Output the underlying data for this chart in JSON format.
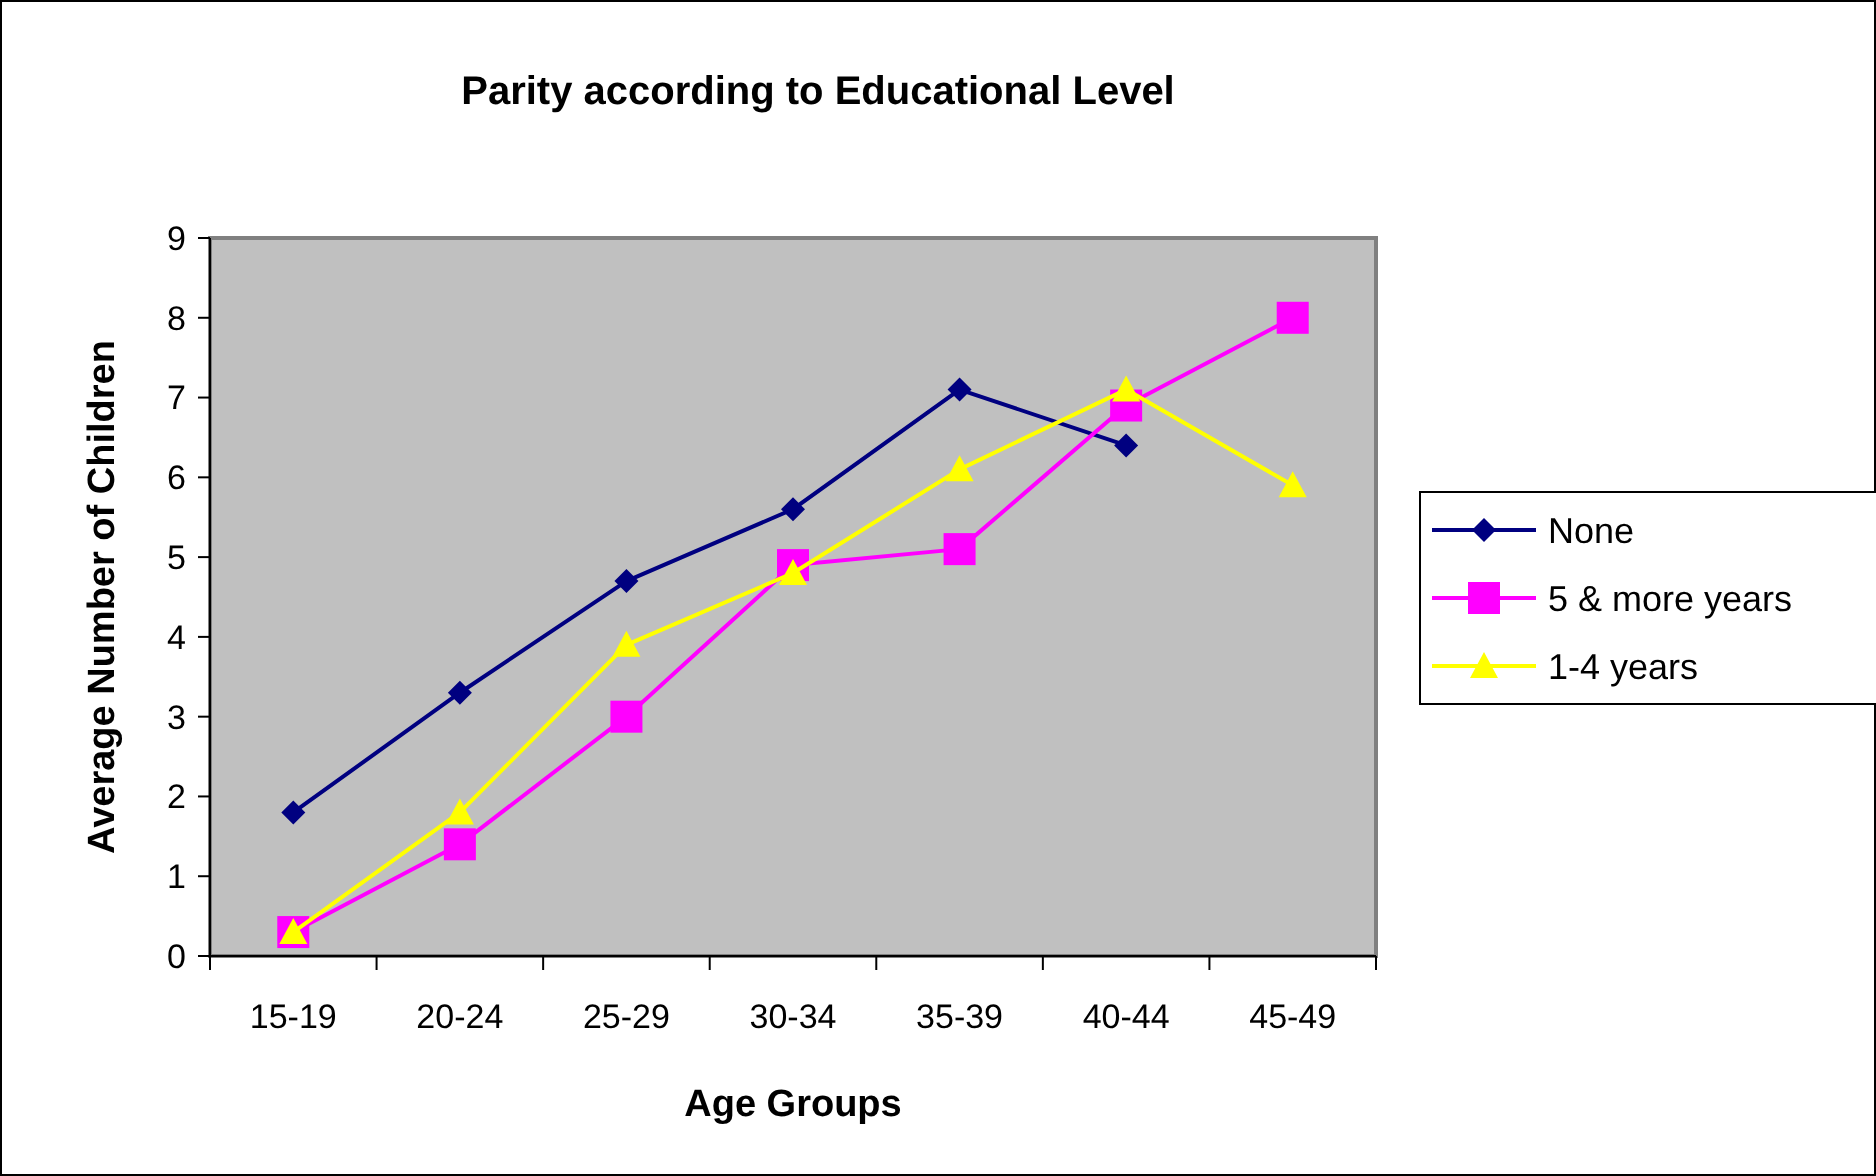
{
  "chart_data": {
    "type": "line",
    "title": "Parity according to Educational Level",
    "xlabel": "Age Groups",
    "ylabel": "Average Number of Children",
    "categories": [
      "15-19",
      "20-24",
      "25-29",
      "30-34",
      "35-39",
      "40-44",
      "45-49"
    ],
    "series": [
      {
        "name": "None",
        "color": "#000080",
        "marker": "diamond",
        "values": [
          1.8,
          3.3,
          4.7,
          5.6,
          7.1,
          6.4,
          null
        ]
      },
      {
        "name": "5 & more years",
        "color": "#ff00ff",
        "marker": "square",
        "values": [
          0.3,
          1.4,
          3.0,
          4.9,
          5.1,
          6.9,
          8.0
        ]
      },
      {
        "name": "1-4 years",
        "color": "#ffff00",
        "marker": "triangle",
        "values": [
          0.3,
          1.8,
          3.9,
          4.8,
          6.1,
          7.1,
          5.9
        ]
      }
    ],
    "ylim": [
      0,
      9
    ],
    "yticks": [
      0,
      1,
      2,
      3,
      4,
      5,
      6,
      7,
      8,
      9
    ],
    "grid": false,
    "legend": "right"
  }
}
